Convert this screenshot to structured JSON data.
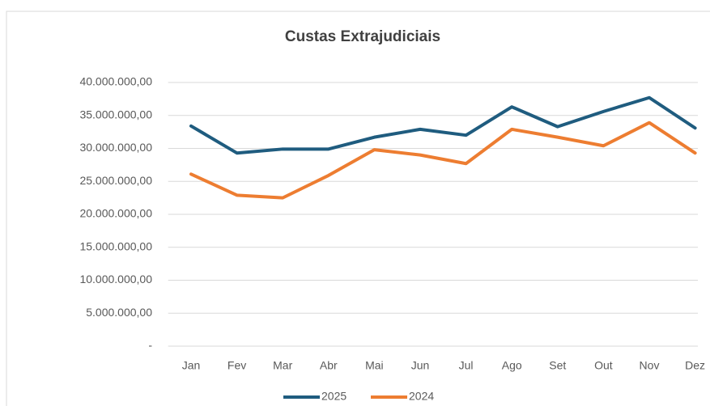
{
  "chart_data": {
    "type": "line",
    "title": "Custas Extrajudiciais",
    "categories": [
      "Jan",
      "Fev",
      "Mar",
      "Abr",
      "Mai",
      "Jun",
      "Jul",
      "Ago",
      "Set",
      "Out",
      "Nov",
      "Dez"
    ],
    "series": [
      {
        "name": "2025",
        "color": "#1f5c7f",
        "values": [
          33400000,
          29300000,
          29900000,
          29900000,
          31700000,
          32900000,
          32000000,
          36300000,
          33300000,
          35600000,
          37700000,
          33100000
        ]
      },
      {
        "name": "2024",
        "color": "#ed7d31",
        "values": [
          26100000,
          22900000,
          22500000,
          25900000,
          29800000,
          29000000,
          27700000,
          32900000,
          31700000,
          30400000,
          33900000,
          29300000
        ]
      }
    ],
    "ylim": [
      0,
      40000000
    ],
    "yticks": [
      {
        "value": 0,
        "label": "-"
      },
      {
        "value": 5000000,
        "label": "5.000.000,00"
      },
      {
        "value": 10000000,
        "label": "10.000.000,00"
      },
      {
        "value": 15000000,
        "label": "15.000.000,00"
      },
      {
        "value": 20000000,
        "label": "20.000.000,00"
      },
      {
        "value": 25000000,
        "label": "25.000.000,00"
      },
      {
        "value": 30000000,
        "label": "30.000.000,00"
      },
      {
        "value": 35000000,
        "label": "35.000.000,00"
      },
      {
        "value": 40000000,
        "label": "40.000.000,00"
      }
    ],
    "grid": true,
    "legend": "bottom"
  }
}
